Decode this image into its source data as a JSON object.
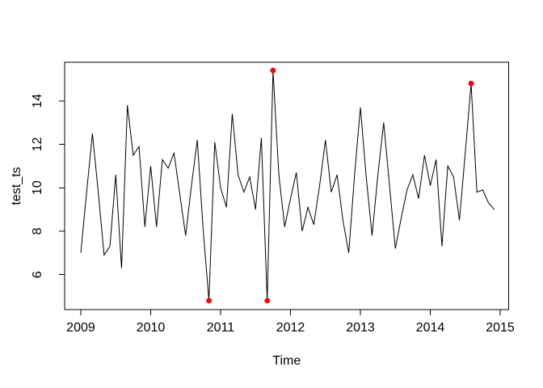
{
  "figure": {
    "background": "#ffffff",
    "border_color": "#000000"
  },
  "chart_data": {
    "type": "line",
    "title": "",
    "xlabel": "Time",
    "ylabel": "test_ts",
    "series_name": "test_ts",
    "start_year": 2009,
    "frequency": 12,
    "values": [
      7.0,
      9.8,
      12.5,
      9.8,
      6.9,
      7.3,
      10.6,
      6.3,
      13.8,
      11.5,
      11.9,
      8.2,
      11.0,
      8.2,
      11.3,
      10.9,
      11.6,
      9.7,
      7.8,
      10.1,
      12.2,
      8.1,
      4.8,
      12.1,
      10.0,
      9.1,
      13.4,
      10.6,
      9.8,
      10.5,
      9.0,
      12.3,
      4.8,
      15.4,
      10.6,
      8.2,
      9.5,
      10.7,
      8.0,
      9.1,
      8.3,
      10.1,
      12.2,
      9.8,
      10.6,
      8.5,
      7.0,
      10.6,
      13.7,
      10.5,
      7.8,
      10.6,
      13.0,
      10.1,
      7.2,
      8.6,
      9.9,
      10.6,
      9.5,
      11.5,
      10.1,
      11.3,
      7.3,
      11.0,
      10.5,
      8.5,
      11.6,
      14.8,
      9.8,
      9.9,
      9.3,
      9.0
    ],
    "outliers": [
      {
        "index": 22,
        "time": "2010-11",
        "value": 4.8
      },
      {
        "index": 32,
        "time": "2011-09",
        "value": 4.8
      },
      {
        "index": 33,
        "time": "2011-10",
        "value": 15.4
      },
      {
        "index": 67,
        "time": "2014-08",
        "value": 14.8
      }
    ],
    "x_ticks": [
      "2009",
      "2010",
      "2011",
      "2012",
      "2013",
      "2014",
      "2015"
    ],
    "y_ticks": [
      "6",
      "8",
      "10",
      "12",
      "14"
    ],
    "xlim": [
      2008.769,
      2015.121
    ],
    "ylim": [
      4.39,
      15.78
    ],
    "grid": false,
    "legend": null,
    "line_color": "#000000",
    "outlier_color": "#FF0000"
  }
}
